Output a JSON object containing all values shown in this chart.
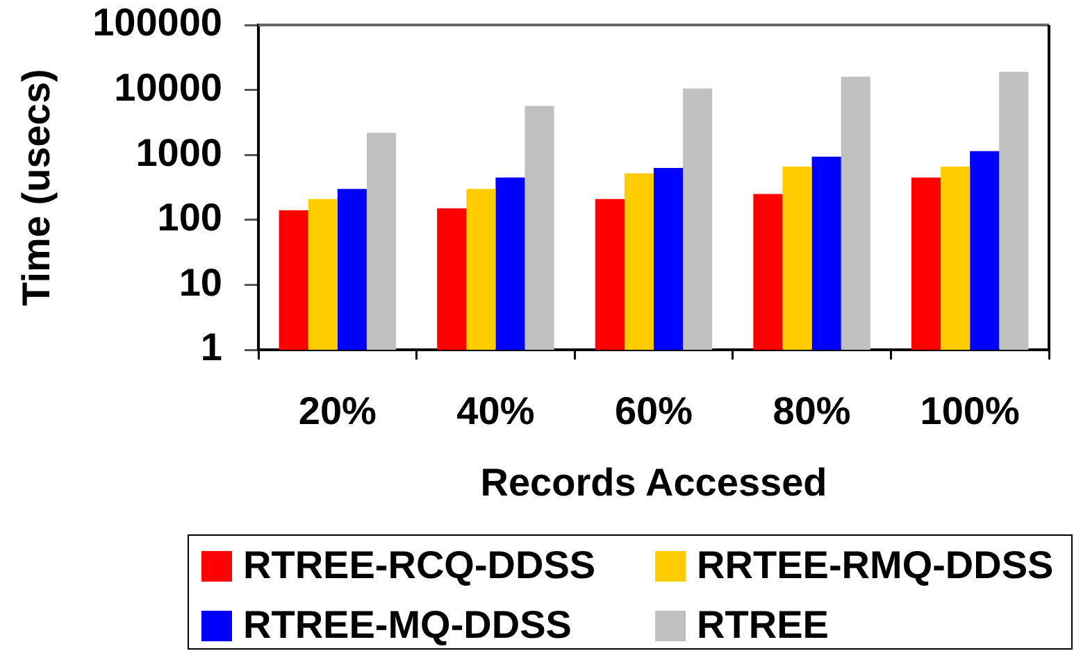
{
  "chart_data": {
    "type": "bar",
    "xlabel": "Records Accessed",
    "ylabel": "Time (usecs)",
    "categories": [
      "20%",
      "40%",
      "60%",
      "80%",
      "100%"
    ],
    "series": [
      {
        "name": "RTREE-RCQ-DDSS",
        "color": "#ff0000",
        "values": [
          140,
          150,
          210,
          250,
          450
        ]
      },
      {
        "name": "RRTEE-RMQ-DDSS",
        "color": "#ffcc00",
        "values": [
          210,
          300,
          520,
          660,
          660
        ]
      },
      {
        "name": "RTREE-MQ-DDSS",
        "color": "#0000ff",
        "values": [
          300,
          450,
          630,
          940,
          1140
        ]
      },
      {
        "name": "RTREE",
        "color": "#c0c0c0",
        "values": [
          2200,
          5700,
          10500,
          16000,
          19000
        ]
      }
    ],
    "log": true,
    "ylim": [
      1,
      100000
    ],
    "yticks": [
      1,
      10,
      100,
      1000,
      10000,
      100000
    ],
    "legend": "bottom"
  }
}
